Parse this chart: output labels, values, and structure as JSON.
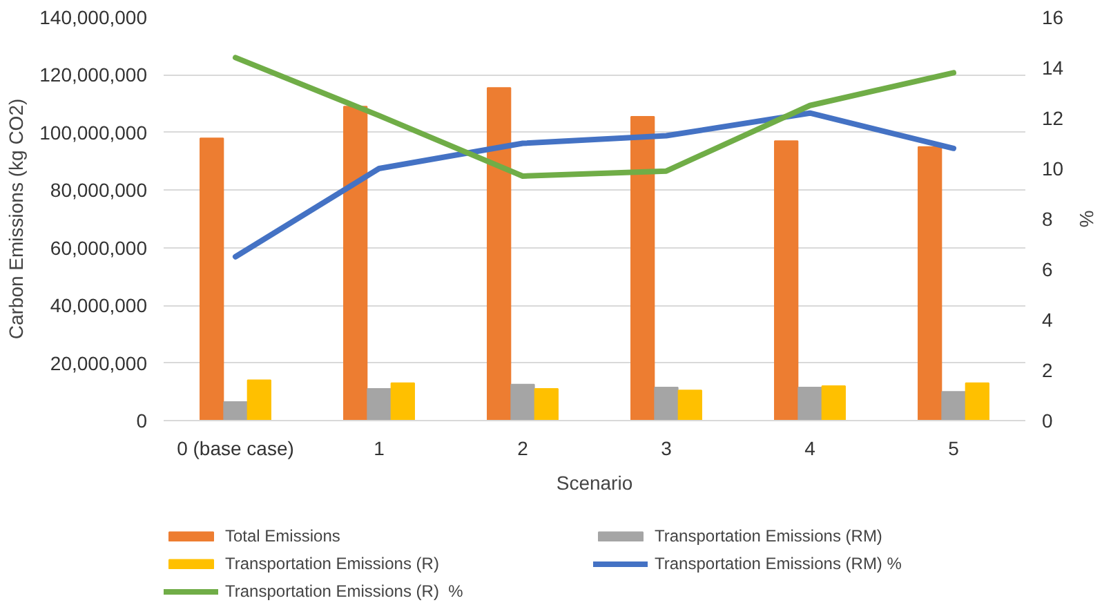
{
  "chart_data": {
    "type": "bar",
    "xlabel": "Scenario",
    "ylabel": "Carbon Emissions (kg CO2)",
    "y2label": "%",
    "categories": [
      "0 (base case)",
      "1",
      "2",
      "3",
      "4",
      "5"
    ],
    "series": [
      {
        "name": "Total Emissions",
        "color": "#ed7d31",
        "values": [
          98000000,
          109000000,
          115500000,
          105500000,
          97000000,
          95000000
        ]
      },
      {
        "name": "Transportation Emissions (RM)",
        "color": "#a5a5a5",
        "values": [
          6500000,
          11000000,
          12500000,
          11500000,
          11500000,
          10000000
        ]
      },
      {
        "name": "Transportation Emissions (R)",
        "color": "#ffc000",
        "values": [
          14000000,
          13000000,
          11000000,
          10500000,
          12000000,
          13000000
        ]
      },
      {
        "name": "Transportation Emissions (RM) %",
        "type": "line",
        "axis": "y2",
        "color": "#4472c4",
        "values": [
          6.5,
          10,
          11,
          11.3,
          12.2,
          10.8
        ]
      },
      {
        "name": "Transportation Emissions (R)  %",
        "type": "line",
        "axis": "y2",
        "color": "#70ad47",
        "values": [
          14.4,
          12.1,
          9.7,
          9.9,
          12.5,
          13.8
        ]
      }
    ],
    "ylim": [
      0,
      140000000
    ],
    "yticks": [
      {
        "value": 0,
        "label": "0"
      },
      {
        "value": 20000000,
        "label": "20,000,000"
      },
      {
        "value": 40000000,
        "label": "40,000,000"
      },
      {
        "value": 60000000,
        "label": "60,000,000"
      },
      {
        "value": 80000000,
        "label": "80,000,000"
      },
      {
        "value": 100000000,
        "label": "100,000,000"
      },
      {
        "value": 120000000,
        "label": "120,000,000"
      },
      {
        "value": 140000000,
        "label": "140,000,000"
      }
    ],
    "y2lim": [
      0,
      16
    ],
    "y2ticks": [
      0,
      2,
      4,
      6,
      8,
      10,
      12,
      14,
      16
    ],
    "grid": "y",
    "legend": "bottom",
    "line_style": "solid",
    "marker": "none"
  }
}
